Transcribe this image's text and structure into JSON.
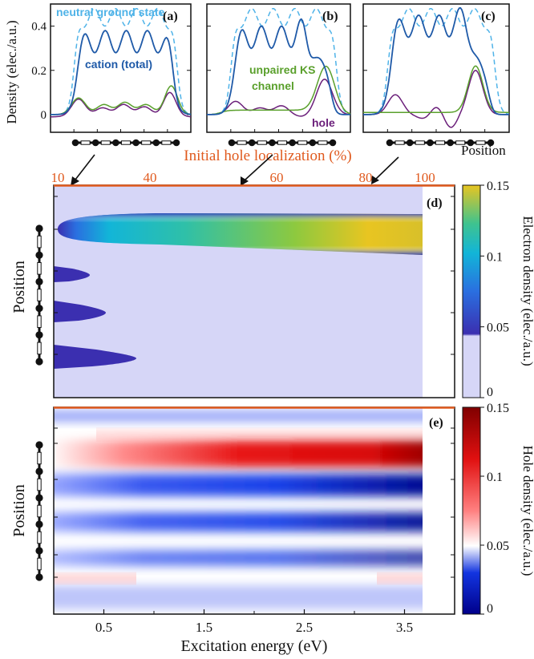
{
  "chart_data": [
    {
      "type": "line",
      "panels": [
        "(a)",
        "(b)",
        "(c)"
      ],
      "ylabel": "Density (elec./a.u.)",
      "yticks": [
        "0",
        "0.2",
        "0.4"
      ],
      "ylim": [
        -0.08,
        0.5
      ],
      "series_names": {
        "neutral": "neutral ground state",
        "cation": "cation (total)",
        "unpaired": "unpaired KS channel",
        "hole": "hole"
      },
      "unpaired_label_line1": "unpaired KS",
      "unpaired_label_line2": "channel",
      "position_label": "Position",
      "colors": {
        "neutral": "#4fb3e8",
        "cation": "#1f5aa8",
        "unpaired": "#5aa02c",
        "hole": "#6b1f7a"
      }
    },
    {
      "type": "heatmap",
      "panel": "(d)",
      "top_axis_label": "Initial hole localization (%)",
      "top_ticks": [
        "10",
        "40",
        "60",
        "80",
        "100"
      ],
      "ylabel": "Position",
      "colorbar_label": "Electron density (elec./a.u.)",
      "colorbar_ticks": [
        "0",
        "0.05",
        "0.1",
        "0.15"
      ],
      "zlim": [
        0,
        0.15
      ]
    },
    {
      "type": "heatmap",
      "panel": "(e)",
      "xlabel": "Excitation energy (eV)",
      "xticks": [
        "0.5",
        "1.5",
        "2.5",
        "3.5"
      ],
      "xlim": [
        0,
        4.0
      ],
      "ylabel": "Position",
      "colorbar_label": "Hole density (elec./a.u.)",
      "colorbar_ticks": [
        "0",
        "0.05",
        "0.1",
        "0.15"
      ],
      "zlim": [
        0,
        0.15
      ]
    }
  ]
}
